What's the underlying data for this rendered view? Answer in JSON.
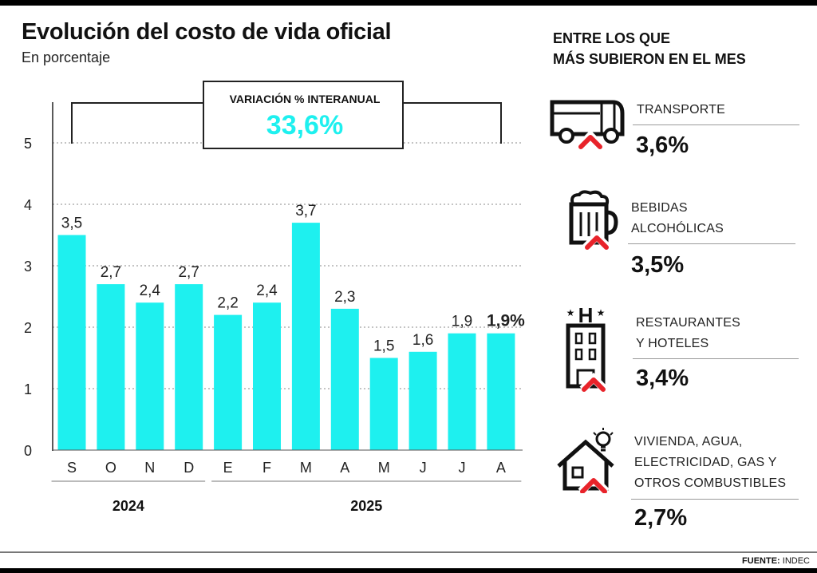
{
  "header": {
    "title": "Evolución del costo de vida oficial",
    "subtitle": "En porcentaje"
  },
  "annotation": {
    "label": "VARIACIÓN % INTERANUAL",
    "value": "33,6%"
  },
  "colors": {
    "bar": "#1ef0ef",
    "arrow": "#e8232a",
    "annotation_value": "#1ef0ef"
  },
  "chart_data": {
    "type": "bar",
    "title": "Evolución del costo de vida oficial",
    "subtitle": "En porcentaje",
    "categories": [
      "S",
      "O",
      "N",
      "D",
      "E",
      "F",
      "M",
      "A",
      "M",
      "J",
      "J",
      "A"
    ],
    "values": [
      3.5,
      2.7,
      2.4,
      2.7,
      2.2,
      2.4,
      3.7,
      2.3,
      1.5,
      1.6,
      1.9,
      1.9
    ],
    "value_labels": [
      "3,5",
      "2,7",
      "2,4",
      "2,7",
      "2,2",
      "2,4",
      "3,7",
      "2,3",
      "1,5",
      "1,6",
      "1,9",
      "1,9%"
    ],
    "highlight_last_label": true,
    "ylim": [
      0,
      5
    ],
    "yticks": [
      0,
      1,
      2,
      3,
      4,
      5
    ],
    "grid": true,
    "year_groups": [
      {
        "label": "2024",
        "start": 0,
        "end": 3
      },
      {
        "label": "2025",
        "start": 4,
        "end": 11
      }
    ]
  },
  "sidebar": {
    "title_lines": [
      "ENTRE LOS QUE",
      "MÁS SUBIERON EN EL MES"
    ],
    "items": [
      {
        "label_lines": [
          "TRANSPORTE"
        ],
        "value": "3,6%",
        "icon": "bus-icon"
      },
      {
        "label_lines": [
          "BEBIDAS",
          "ALCOHÓLICAS"
        ],
        "value": "3,5%",
        "icon": "beer-mug-icon"
      },
      {
        "label_lines": [
          "RESTAURANTES",
          "Y HOTELES"
        ],
        "value": "3,4%",
        "icon": "hotel-icon"
      },
      {
        "label_lines": [
          "VIVIENDA, AGUA,",
          "ELECTRICIDAD, GAS Y",
          "OTROS COMBUSTIBLES"
        ],
        "value": "2,7%",
        "icon": "house-lightbulb-icon"
      }
    ]
  },
  "footer": {
    "source_label": "FUENTE:",
    "source_value": "INDEC"
  }
}
